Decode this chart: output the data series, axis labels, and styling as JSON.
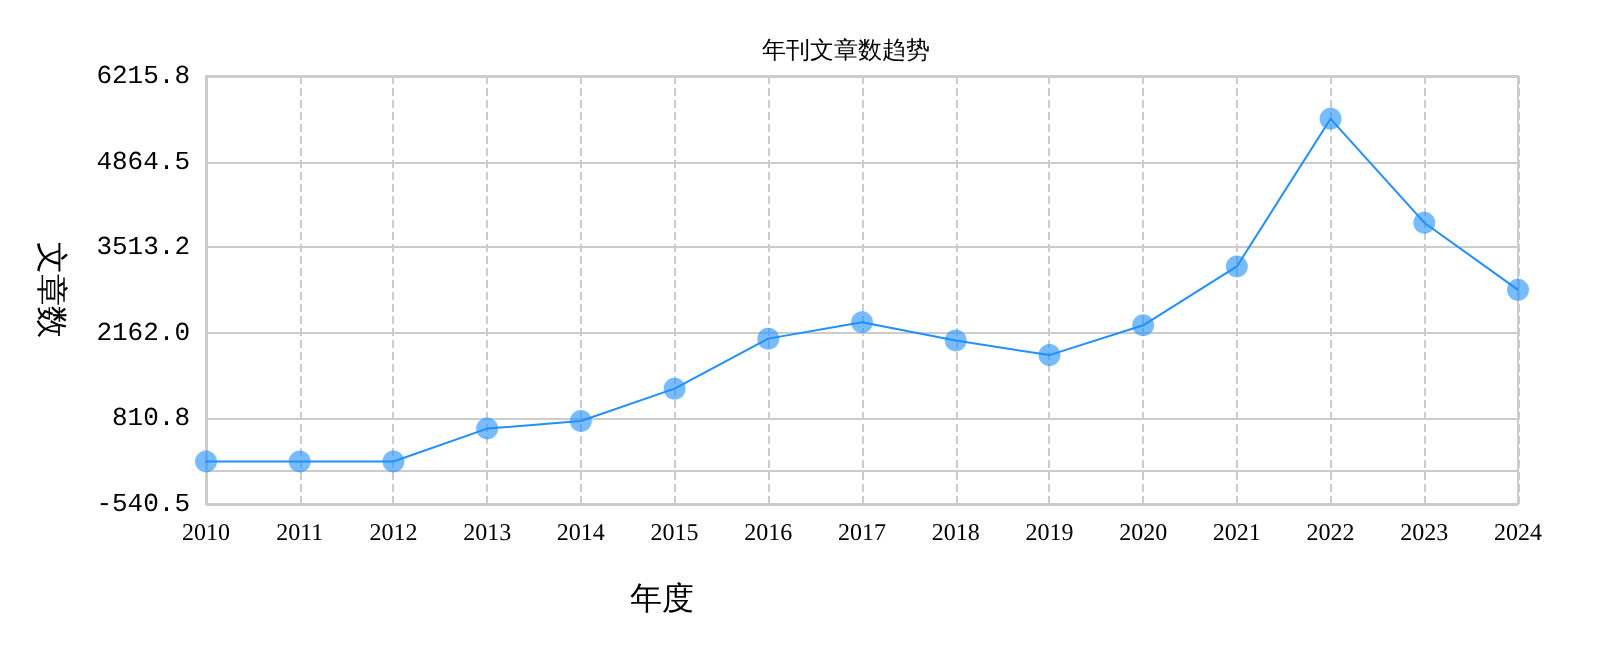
{
  "chart_data": {
    "type": "line",
    "title": "年刊文章数趋势",
    "xlabel": "年度",
    "ylabel": "文章数",
    "categories": [
      "2010",
      "2011",
      "2012",
      "2013",
      "2014",
      "2015",
      "2016",
      "2017",
      "2018",
      "2019",
      "2020",
      "2021",
      "2022",
      "2023",
      "2024"
    ],
    "series": [
      {
        "color": "#1e90ff",
        "values": [
          130,
          130,
          130,
          650,
          770,
          1280,
          2070,
          2330,
          2040,
          1810,
          2280,
          3210,
          5540,
          3900,
          2840
        ]
      }
    ],
    "ylim": [
      -540.5,
      6215.8
    ],
    "yticks": [
      {
        "value": -540.5,
        "label": "-540.5"
      },
      {
        "value": 810.8,
        "label": "810.8"
      },
      {
        "value": 2162.0,
        "label": "2162.0"
      },
      {
        "value": 3513.2,
        "label": "3513.2"
      },
      {
        "value": 4864.5,
        "label": "4864.5"
      },
      {
        "value": 6215.8,
        "label": "6215.8"
      }
    ],
    "grid": true,
    "marker": "circle",
    "line_style": "solid"
  }
}
